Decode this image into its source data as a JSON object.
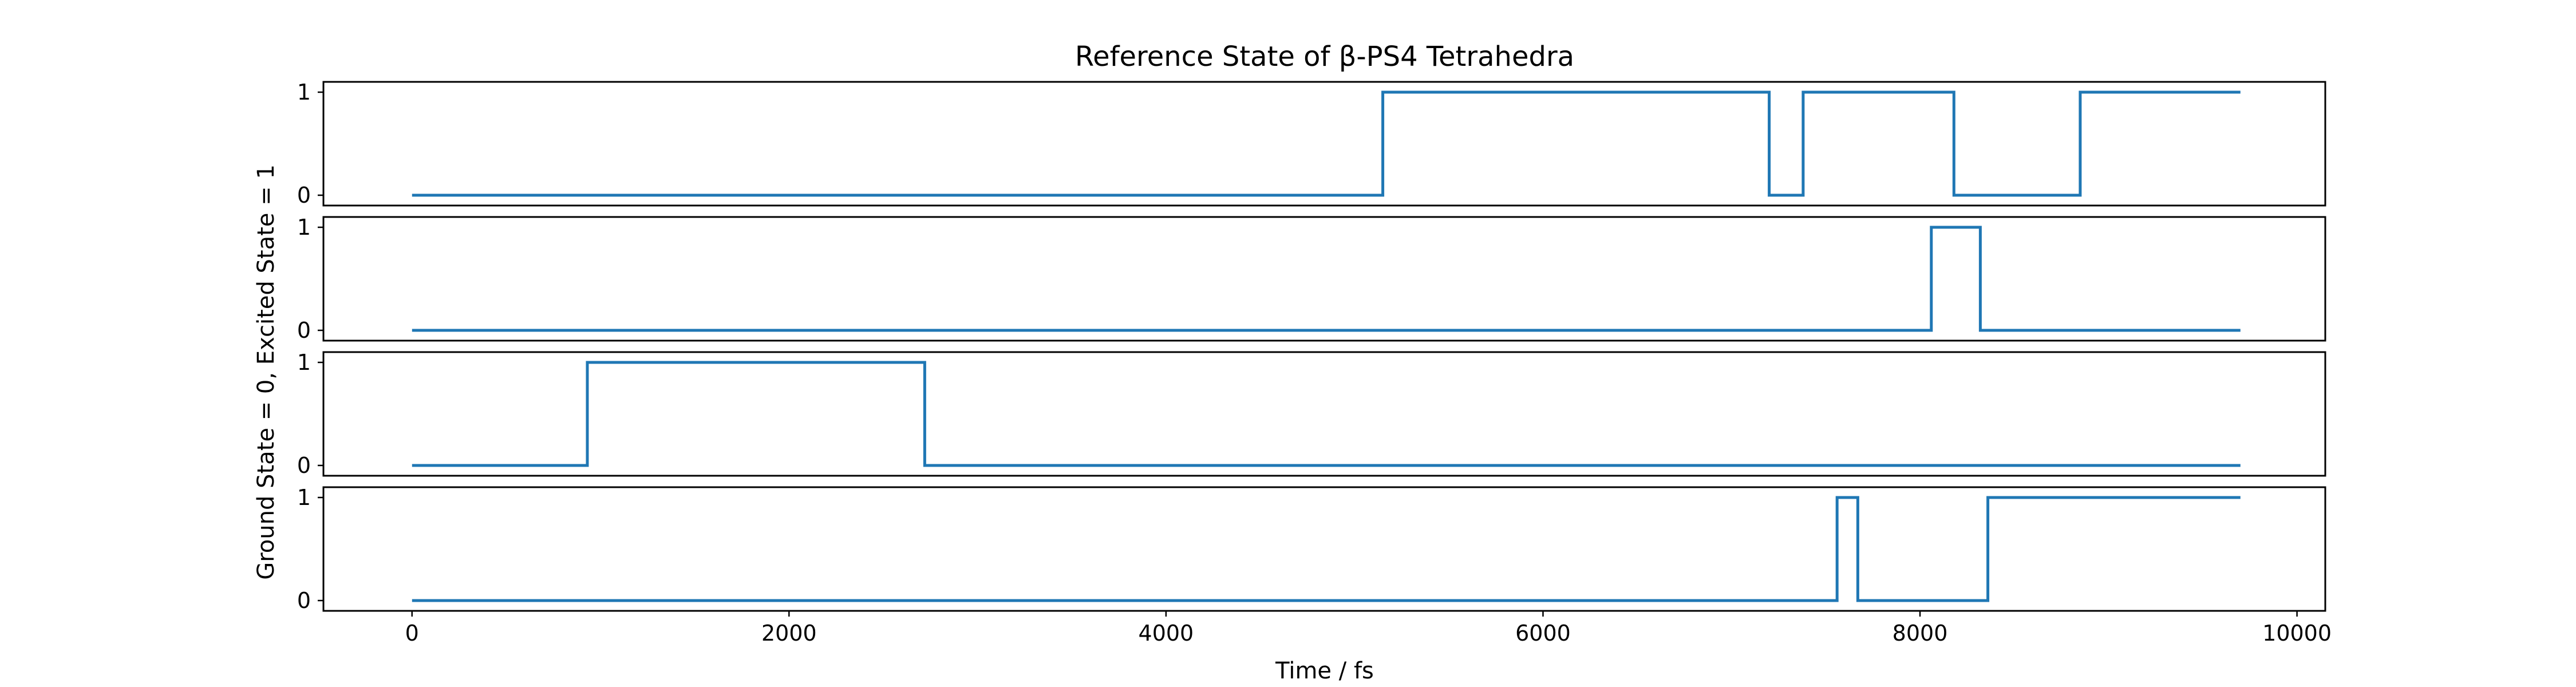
{
  "chart_data": {
    "type": "line",
    "step": true,
    "title": "Reference State of β-PS4 Tetrahedra",
    "xlabel": "Time / fs",
    "ylabel": "Ground State = 0, Excited State = 1",
    "xlim": [
      -470,
      10150
    ],
    "ylim": [
      -0.1,
      1.1
    ],
    "x_ticks": [
      0,
      2000,
      4000,
      6000,
      8000,
      10000
    ],
    "x_tick_labels": [
      "0",
      "2000",
      "4000",
      "6000",
      "8000",
      "10000"
    ],
    "y_ticks": [
      0,
      1
    ],
    "y_tick_labels": [
      "0",
      "1"
    ],
    "color": "#1f77b4",
    "grid": false,
    "legend": "none",
    "panels": [
      {
        "x": [
          0,
          5150,
          5150,
          7200,
          7200,
          7380,
          7380,
          8180,
          8180,
          8850,
          8850,
          9700
        ],
        "y": [
          0,
          0,
          1,
          1,
          0,
          0,
          1,
          1,
          0,
          0,
          1,
          1
        ]
      },
      {
        "x": [
          0,
          8060,
          8060,
          8320,
          8320,
          9700
        ],
        "y": [
          0,
          0,
          1,
          1,
          0,
          0
        ]
      },
      {
        "x": [
          0,
          930,
          930,
          2720,
          2720,
          9700
        ],
        "y": [
          0,
          0,
          1,
          1,
          0,
          0
        ]
      },
      {
        "x": [
          0,
          7560,
          7560,
          7670,
          7670,
          8360,
          8360,
          9700
        ],
        "y": [
          0,
          0,
          1,
          1,
          0,
          0,
          1,
          1
        ]
      }
    ]
  }
}
